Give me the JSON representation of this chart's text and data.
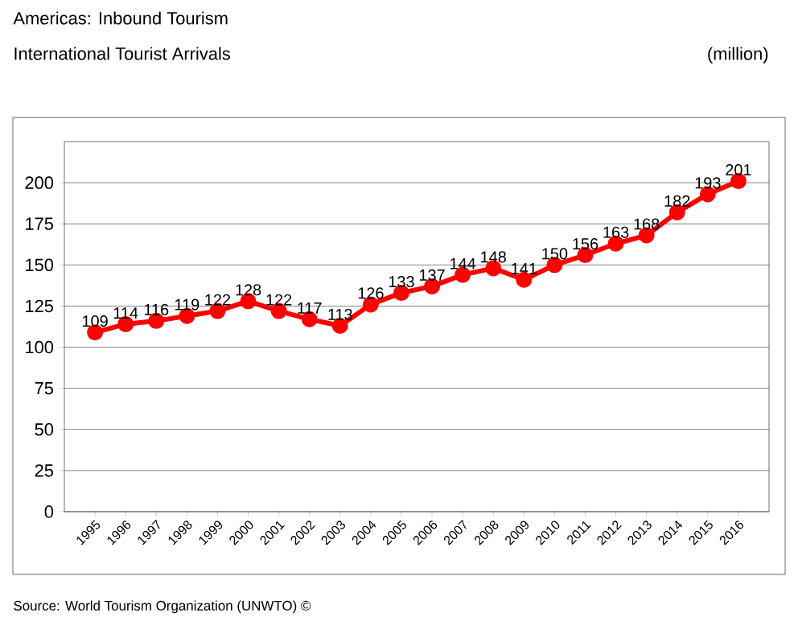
{
  "chart_data": {
    "type": "line",
    "title": "Americas: Inbound Tourism",
    "subtitle": "International Tourist Arrivals",
    "ylabel": "(million)",
    "annotations": [
      "Source: World Tourism Organization (UNWTO) ©"
    ],
    "categories": [
      "1995",
      "1996",
      "1997",
      "1998",
      "1999",
      "2000",
      "2001",
      "2002",
      "2003",
      "2004",
      "2005",
      "2006",
      "2007",
      "2008",
      "2009",
      "2010",
      "2011",
      "2012",
      "2013",
      "2014",
      "2015",
      "2016"
    ],
    "values": [
      109,
      114,
      116,
      119,
      122,
      128,
      122,
      117,
      113,
      126,
      133,
      137,
      144,
      148,
      141,
      150,
      156,
      163,
      168,
      182,
      193,
      201
    ],
    "color": "#ff0000",
    "ylim": [
      0,
      225
    ],
    "yticks": [
      0,
      25,
      50,
      75,
      100,
      125,
      150,
      175,
      200
    ],
    "grid": "y",
    "marker": "circle",
    "line_style": "solid",
    "data_labels": true
  }
}
